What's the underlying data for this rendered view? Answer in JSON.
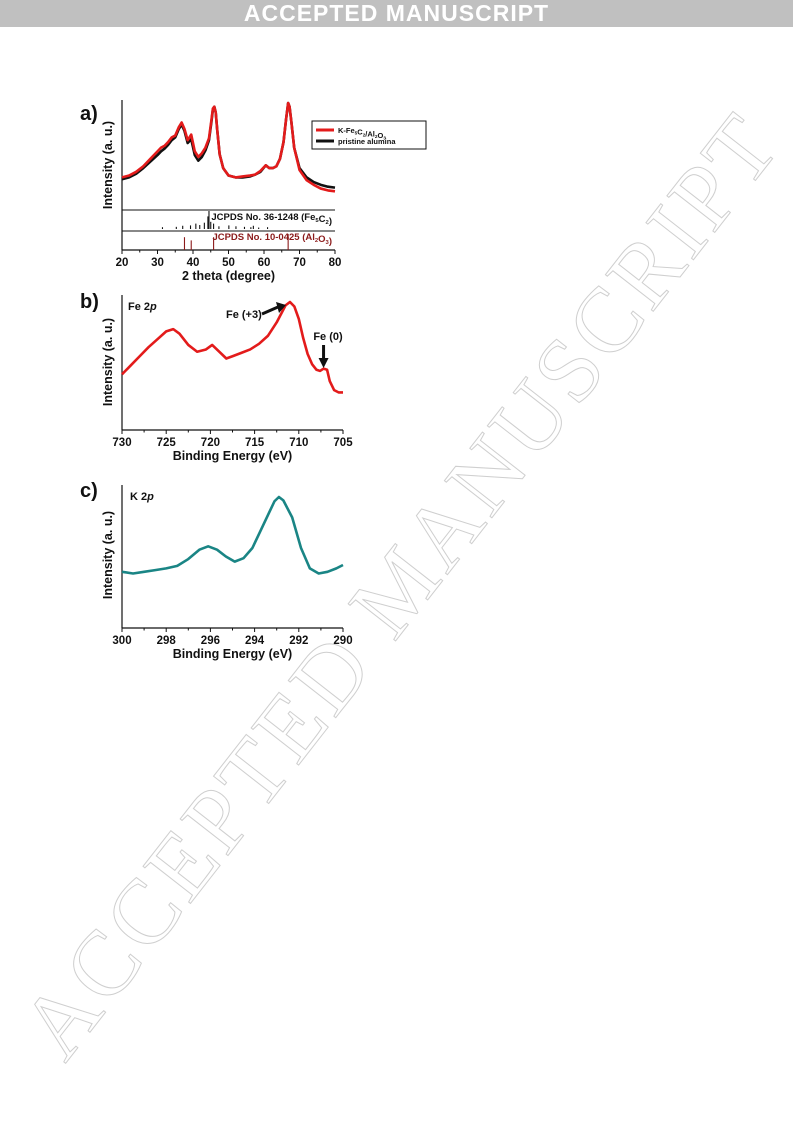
{
  "header": {
    "banner": "ACCEPTED MANUSCRIPT"
  },
  "watermark": {
    "text": "ACCEPTED MANUSCRIPT"
  },
  "chart_data": [
    {
      "panel": "a)",
      "type": "line",
      "xlabel": "2 theta (degree)",
      "ylabel": "Intensity (a. u.)",
      "xlim": [
        20,
        80
      ],
      "xticks": [
        20,
        30,
        40,
        50,
        60,
        70,
        80
      ],
      "legend": {
        "placement": "top-right"
      },
      "series": [
        {
          "name": "K-Fe5C2/Al2O3",
          "color": "#e31b1b",
          "x": [
            20,
            22,
            24,
            26,
            28,
            30,
            31,
            32,
            33,
            34,
            35,
            36,
            36.8,
            37.6,
            38.5,
            39.5,
            40.5,
            41.5,
            42.5,
            43.5,
            44.5,
            45.2,
            45.6,
            46,
            46.4,
            46.8,
            47.5,
            48.5,
            50,
            52,
            54,
            56,
            57.5,
            59,
            60.5,
            61.5,
            62.5,
            63.5,
            64.5,
            65.5,
            66.2,
            66.8,
            67.2,
            67.7,
            68.5,
            70,
            72,
            74,
            76,
            78,
            80
          ],
          "y": [
            0.2,
            0.22,
            0.26,
            0.32,
            0.4,
            0.48,
            0.52,
            0.54,
            0.58,
            0.63,
            0.65,
            0.74,
            0.79,
            0.72,
            0.6,
            0.66,
            0.48,
            0.42,
            0.46,
            0.52,
            0.62,
            0.82,
            0.94,
            0.96,
            0.9,
            0.72,
            0.45,
            0.3,
            0.22,
            0.2,
            0.21,
            0.22,
            0.23,
            0.27,
            0.33,
            0.3,
            0.3,
            0.32,
            0.4,
            0.58,
            0.82,
            1.0,
            0.96,
            0.8,
            0.52,
            0.28,
            0.17,
            0.12,
            0.08,
            0.06,
            0.05
          ]
        },
        {
          "name": "pristine alumina",
          "color": "#111111",
          "x": [
            20,
            22,
            24,
            26,
            28,
            30,
            31,
            32,
            33,
            34,
            35,
            36,
            36.8,
            37.6,
            38.5,
            39.5,
            40.5,
            41.5,
            42.5,
            43.5,
            44.5,
            45.2,
            45.6,
            46,
            46.4,
            46.8,
            47.5,
            48.5,
            50,
            52,
            54,
            56,
            57.5,
            59,
            60.5,
            61.5,
            62.5,
            63.5,
            64.5,
            65.5,
            66.2,
            66.8,
            67.2,
            67.7,
            68.5,
            70,
            72,
            74,
            76,
            78,
            80
          ],
          "y": [
            0.18,
            0.2,
            0.24,
            0.3,
            0.37,
            0.44,
            0.48,
            0.51,
            0.55,
            0.6,
            0.63,
            0.72,
            0.77,
            0.7,
            0.57,
            0.61,
            0.44,
            0.38,
            0.42,
            0.49,
            0.6,
            0.8,
            0.93,
            0.96,
            0.9,
            0.72,
            0.45,
            0.3,
            0.22,
            0.2,
            0.2,
            0.21,
            0.23,
            0.26,
            0.33,
            0.3,
            0.3,
            0.32,
            0.4,
            0.58,
            0.82,
            1.0,
            0.96,
            0.8,
            0.52,
            0.3,
            0.2,
            0.15,
            0.12,
            0.1,
            0.09
          ]
        }
      ],
      "references": [
        {
          "label": "JCPDS No. 36-1248 (Fe5C2)",
          "color": "#111111",
          "positions": [
            31.4,
            35.3,
            37.1,
            39.3,
            40.8,
            41.9,
            43.2,
            44.2,
            44.5,
            45.0,
            45.8,
            47.3,
            50.1,
            52.1,
            54.5,
            56.3,
            57.0,
            58.5,
            61.0
          ],
          "heights": [
            0.1,
            0.12,
            0.18,
            0.2,
            0.3,
            0.22,
            0.35,
            0.7,
            1.0,
            0.4,
            0.3,
            0.15,
            0.2,
            0.15,
            0.12,
            0.1,
            0.18,
            0.08,
            0.1
          ]
        },
        {
          "label": "JCPDS No. 10-0425 (Al2O3)",
          "color": "#8b1a1a",
          "positions": [
            37.6,
            39.5,
            45.8,
            66.8
          ],
          "heights": [
            0.8,
            0.6,
            0.8,
            1.0
          ]
        }
      ]
    },
    {
      "panel": "b)",
      "type": "line",
      "xlabel": "Binding Energy (eV)",
      "ylabel": "Intensity (a. u.)",
      "xlim": [
        730,
        705
      ],
      "xticks": [
        730,
        725,
        720,
        715,
        710,
        705
      ],
      "label": "Fe 2p",
      "series": [
        {
          "name": "Fe 2p",
          "color": "#e31b1b",
          "x": [
            730,
            729,
            728,
            727,
            726,
            725,
            724.2,
            723.5,
            722.5,
            721.5,
            720.5,
            719.8,
            719,
            718.2,
            717.5,
            716.5,
            715.5,
            714.5,
            713.5,
            712.5,
            711.5,
            711,
            710.5,
            710,
            709.5,
            709,
            708.5,
            708,
            707.6,
            707.2,
            706.8,
            706.5,
            706,
            705.5,
            705
          ],
          "y": [
            0.36,
            0.44,
            0.52,
            0.6,
            0.67,
            0.74,
            0.76,
            0.72,
            0.62,
            0.56,
            0.58,
            0.62,
            0.56,
            0.5,
            0.52,
            0.55,
            0.58,
            0.63,
            0.7,
            0.82,
            0.97,
            1.0,
            0.96,
            0.85,
            0.68,
            0.54,
            0.45,
            0.4,
            0.39,
            0.41,
            0.4,
            0.3,
            0.22,
            0.2,
            0.2
          ]
        }
      ],
      "annotations": [
        {
          "text": "Fe (+3)",
          "x": 711
        },
        {
          "text": "Fe (0)",
          "x": 707.2
        }
      ]
    },
    {
      "panel": "c)",
      "type": "line",
      "xlabel": "Binding Energy (eV)",
      "ylabel": "Intensity (a. u.)",
      "xlim": [
        300,
        290
      ],
      "xticks": [
        300,
        298,
        296,
        294,
        292,
        290
      ],
      "label": "K 2p",
      "series": [
        {
          "name": "K 2p",
          "color": "#1a8585",
          "x": [
            300,
            299.5,
            299,
            298.5,
            298,
            297.5,
            297,
            296.5,
            296.1,
            295.7,
            295.3,
            294.9,
            294.5,
            294.1,
            293.7,
            293.3,
            293.1,
            292.9,
            292.7,
            292.3,
            291.9,
            291.5,
            291.1,
            290.7,
            290.3,
            290
          ],
          "y": [
            0.12,
            0.1,
            0.12,
            0.14,
            0.16,
            0.19,
            0.27,
            0.38,
            0.42,
            0.38,
            0.3,
            0.24,
            0.28,
            0.4,
            0.62,
            0.84,
            0.95,
            1.0,
            0.96,
            0.76,
            0.4,
            0.16,
            0.1,
            0.12,
            0.16,
            0.2
          ]
        }
      ]
    }
  ]
}
